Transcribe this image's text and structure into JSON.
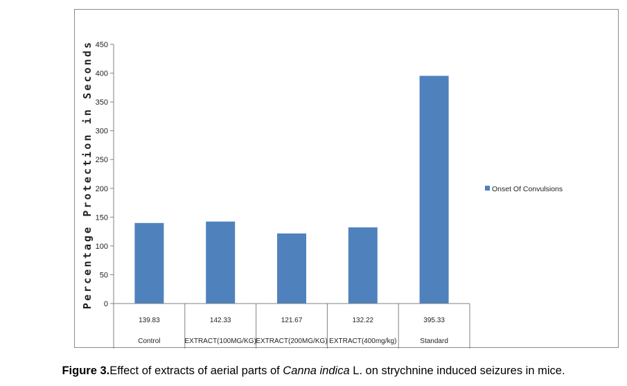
{
  "chart_data": {
    "type": "bar",
    "categories": [
      "Control",
      "EXTRACT(100MG/KG)",
      "EXTRACT(200MG/KG)",
      "EXTRACT(400mg/kg)",
      "Standard"
    ],
    "series": [
      {
        "name": "Onset Of Convulsions",
        "values": [
          139.83,
          142.33,
          121.67,
          132.22,
          395.33
        ],
        "value_labels": [
          "139.83",
          "142.33",
          "121.67",
          "132.22",
          "395.33"
        ],
        "color": "#4f81bd"
      }
    ],
    "ylabel": "Percentage Protection in Seconds",
    "ylim": [
      0,
      450
    ],
    "yticks": [
      0,
      50,
      100,
      150,
      200,
      250,
      300,
      350,
      400,
      450
    ],
    "grid": false,
    "legend_position": "right",
    "data_table": true
  },
  "caption": {
    "label": "Figure 3.",
    "text_before": "Effect of extracts of aerial parts of ",
    "species": "Canna indica",
    "text_after": " L. on strychnine induced seizures in mice."
  }
}
